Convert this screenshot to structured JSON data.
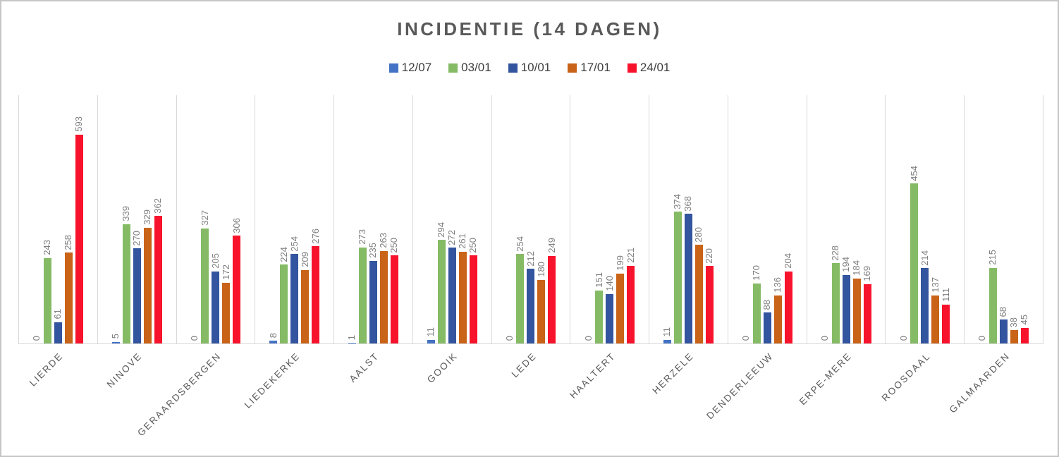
{
  "chart_data": {
    "type": "bar",
    "title": "INCIDENTIE (14 DAGEN)",
    "xlabel": "",
    "ylabel": "",
    "ylim": [
      0,
      705
    ],
    "grid": "vertical-category-separators",
    "legend_position": "top",
    "categories": [
      "LIERDE",
      "NINOVE",
      "GERAARDSBERGEN",
      "LIEDEKERKE",
      "AALST",
      "GOOIK",
      "LEDE",
      "HAALTERT",
      "HERZELE",
      "DENDERLEEUW",
      "ERPE-MERE",
      "ROOSDAAL",
      "GALMAARDEN"
    ],
    "series": [
      {
        "name": "12/07",
        "color": "#4472C4",
        "values": [
          0,
          5,
          0,
          8,
          1,
          11,
          0,
          0,
          11,
          0,
          0,
          0,
          0
        ]
      },
      {
        "name": "03/01",
        "color": "#85BB65",
        "values": [
          243,
          339,
          327,
          224,
          273,
          294,
          254,
          151,
          374,
          170,
          228,
          454,
          215
        ]
      },
      {
        "name": "10/01",
        "color": "#33549E",
        "values": [
          61,
          270,
          205,
          254,
          235,
          272,
          212,
          140,
          368,
          88,
          194,
          214,
          68
        ]
      },
      {
        "name": "17/01",
        "color": "#C96318",
        "values": [
          258,
          329,
          172,
          209,
          263,
          261,
          180,
          199,
          280,
          136,
          184,
          137,
          38
        ]
      },
      {
        "name": "24/01",
        "color": "#F8132C",
        "values": [
          593,
          362,
          306,
          276,
          250,
          250,
          249,
          221,
          220,
          204,
          169,
          111,
          45
        ]
      }
    ],
    "colors": {
      "title_text": "#595959",
      "legend_text": "#3F3F3F",
      "value_label_text": "#7F7F7F",
      "axis_label_text": "#595959",
      "gridline": "#D9D9D9",
      "frame_border": "#C6C6C6",
      "background": "#FFFFFF"
    }
  }
}
